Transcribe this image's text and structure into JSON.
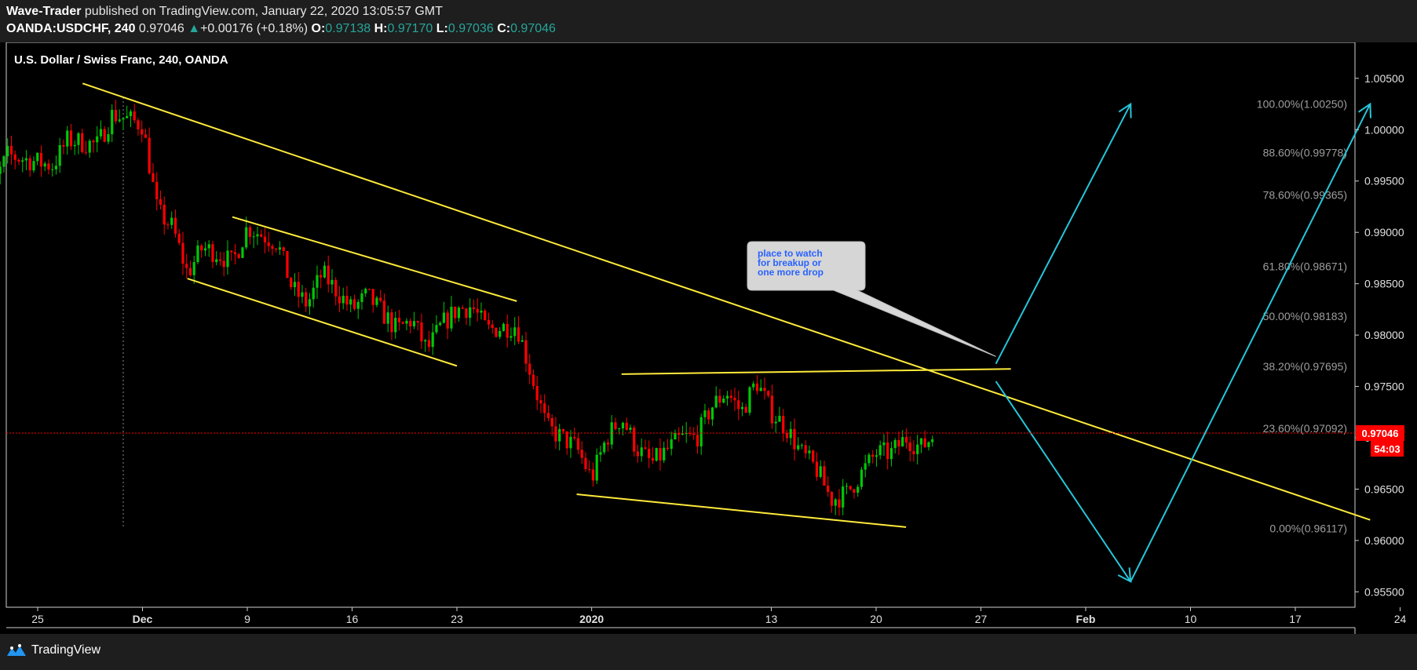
{
  "header": {
    "author": "Wave-Trader",
    "published_text": "published on TradingView.com, January 22, 2020 13:05:57 GMT",
    "symbol": "OANDA:USDCHF, 240",
    "last": "0.97046",
    "change_arrow": "▲",
    "change": "+0.00176 (+0.18%)",
    "o_label": "O:",
    "o_value": "0.97138",
    "h_label": "H:",
    "h_value": "0.97170",
    "l_label": "L:",
    "l_value": "0.97036",
    "c_label": "C:",
    "c_value": "0.97046"
  },
  "footer": {
    "brand": "TradingView",
    "brand_icon": "tradingview-logo-icon"
  },
  "colors": {
    "background": "#000000",
    "up": "#00c805",
    "down": "#ff0000",
    "trendline": "#ffeb3b",
    "projection": "#26c6da",
    "fib_text": "#9e9e9e",
    "price_tag": "#ff0000"
  },
  "chart_data": {
    "type": "candlestick",
    "title": "U.S. Dollar / Swiss Franc, 240, OANDA",
    "y_axis": {
      "ticks": [
        "1.00500",
        "1.00000",
        "0.99500",
        "0.99000",
        "0.98500",
        "0.98000",
        "0.97500",
        "0.97000",
        "0.96500",
        "0.96000",
        "0.95500"
      ],
      "range": [
        0.9535,
        1.0085
      ],
      "side": "right"
    },
    "x_axis": {
      "ticks": [
        "25",
        "Dec",
        "9",
        "16",
        "23",
        "2020",
        "13",
        "20",
        "27",
        "Feb",
        "10",
        "17",
        "24"
      ],
      "bold_ticks": [
        "Dec",
        "2020",
        "Feb"
      ],
      "dates": [
        "2019-11-25",
        "2019-12-02",
        "2019-12-09",
        "2019-12-16",
        "2019-12-23",
        "2020-01-01",
        "2020-01-13",
        "2020-01-20",
        "2020-01-27",
        "2020-02-03",
        "2020-02-10",
        "2020-02-17",
        "2020-02-24"
      ]
    },
    "last_price": {
      "value": 0.97046,
      "label": "0.97046",
      "countdown": "54:03"
    },
    "price_path": [
      [
        "2019-11-21",
        0.9925
      ],
      [
        "2019-11-22",
        0.9945
      ],
      [
        "2019-11-23",
        0.9975
      ],
      [
        "2019-11-26",
        0.9965
      ],
      [
        "2019-11-27",
        0.999
      ],
      [
        "2019-11-29",
        0.9985
      ],
      [
        "2019-11-30",
        1.0015
      ],
      [
        "2019-12-02",
        1.0005
      ],
      [
        "2019-12-03",
        0.992
      ],
      [
        "2019-12-04",
        0.9905
      ],
      [
        "2019-12-05",
        0.986
      ],
      [
        "2019-12-06",
        0.9885
      ],
      [
        "2019-12-07",
        0.988
      ],
      [
        "2019-12-08",
        0.987
      ],
      [
        "2019-12-09",
        0.9905
      ],
      [
        "2019-12-11",
        0.989
      ],
      [
        "2019-12-12",
        0.9845
      ],
      [
        "2019-12-13",
        0.983
      ],
      [
        "2019-12-14",
        0.986
      ],
      [
        "2019-12-16",
        0.9825
      ],
      [
        "2019-12-17",
        0.9838
      ],
      [
        "2019-12-18",
        0.9822
      ],
      [
        "2019-12-19",
        0.9805
      ],
      [
        "2019-12-20",
        0.9815
      ],
      [
        "2019-12-21",
        0.9785
      ],
      [
        "2019-12-22",
        0.981
      ],
      [
        "2019-12-23",
        0.9825
      ],
      [
        "2019-12-24",
        0.9828
      ],
      [
        "2019-12-25",
        0.9805
      ],
      [
        "2019-12-27",
        0.981
      ],
      [
        "2019-12-28",
        0.976
      ],
      [
        "2019-12-29",
        0.971
      ],
      [
        "2019-12-31",
        0.969
      ],
      [
        "2020-01-01",
        0.966
      ],
      [
        "2020-01-02",
        0.97
      ],
      [
        "2020-01-03",
        0.972
      ],
      [
        "2020-01-04",
        0.969
      ],
      [
        "2020-01-05",
        0.9675
      ],
      [
        "2020-01-07",
        0.97
      ],
      [
        "2020-01-08",
        0.97
      ],
      [
        "2020-01-09",
        0.973
      ],
      [
        "2020-01-10",
        0.9745
      ],
      [
        "2020-01-11",
        0.9725
      ],
      [
        "2020-01-12",
        0.9755
      ],
      [
        "2020-01-13",
        0.9725
      ],
      [
        "2020-01-14",
        0.971
      ],
      [
        "2020-01-15",
        0.9685
      ],
      [
        "2020-01-16",
        0.967
      ],
      [
        "2020-01-17",
        0.964
      ],
      [
        "2020-01-18",
        0.9645
      ],
      [
        "2020-01-19",
        0.9665
      ],
      [
        "2020-01-20",
        0.9685
      ],
      [
        "2020-01-21",
        0.9685
      ],
      [
        "2020-01-22",
        0.97
      ],
      [
        "2020-01-23",
        0.969
      ],
      [
        "2020-01-24",
        0.9705
      ]
    ],
    "fib_levels": [
      {
        "label": "100.00%(1.00250)",
        "price": 1.0025
      },
      {
        "label": "88.60%(0.99778)",
        "price": 0.99778
      },
      {
        "label": "78.60%(0.99365)",
        "price": 0.99365
      },
      {
        "label": "61.80%(0.98671)",
        "price": 0.98671
      },
      {
        "label": "50.00%(0.98183)",
        "price": 0.98183
      },
      {
        "label": "38.20%(0.97695)",
        "price": 0.97695
      },
      {
        "label": "23.60%(0.97092)",
        "price": 0.97092
      },
      {
        "label": "0.00%(0.96117)",
        "price": 0.96117
      }
    ],
    "trendlines": [
      {
        "name": "main-downtrend-line",
        "from": [
          "2019-11-28",
          1.0045
        ],
        "to": [
          "2020-02-22",
          0.962
        ]
      },
      {
        "name": "channel-upper-line",
        "from": [
          "2019-12-08",
          0.9915
        ],
        "to": [
          "2019-12-27",
          0.9833
        ]
      },
      {
        "name": "channel-lower-line",
        "from": [
          "2019-12-05",
          0.9855
        ],
        "to": [
          "2019-12-23",
          0.977
        ]
      },
      {
        "name": "resistance-line",
        "from": [
          "2020-01-03",
          0.9762
        ],
        "to": [
          "2020-01-29",
          0.9767
        ]
      },
      {
        "name": "wedge-support-line",
        "from": [
          "2019-12-31",
          0.9645
        ],
        "to": [
          "2020-01-22",
          0.9613
        ]
      }
    ],
    "projections": [
      {
        "name": "breakout-arrow",
        "points": [
          [
            "2020-01-28",
            0.9772
          ],
          [
            "2020-02-06",
            1.0025
          ]
        ]
      },
      {
        "name": "drop-arrow",
        "points": [
          [
            "2020-01-28",
            0.9755
          ],
          [
            "2020-02-06",
            0.956
          ]
        ]
      },
      {
        "name": "recovery-arrow",
        "points": [
          [
            "2020-02-06",
            0.956
          ],
          [
            "2020-02-22",
            1.0025
          ]
        ]
      }
    ],
    "callout": {
      "lines": [
        "place to watch",
        "for breakup or",
        "one more drop"
      ],
      "pointer": [
        "2020-01-28",
        0.977
      ]
    }
  }
}
